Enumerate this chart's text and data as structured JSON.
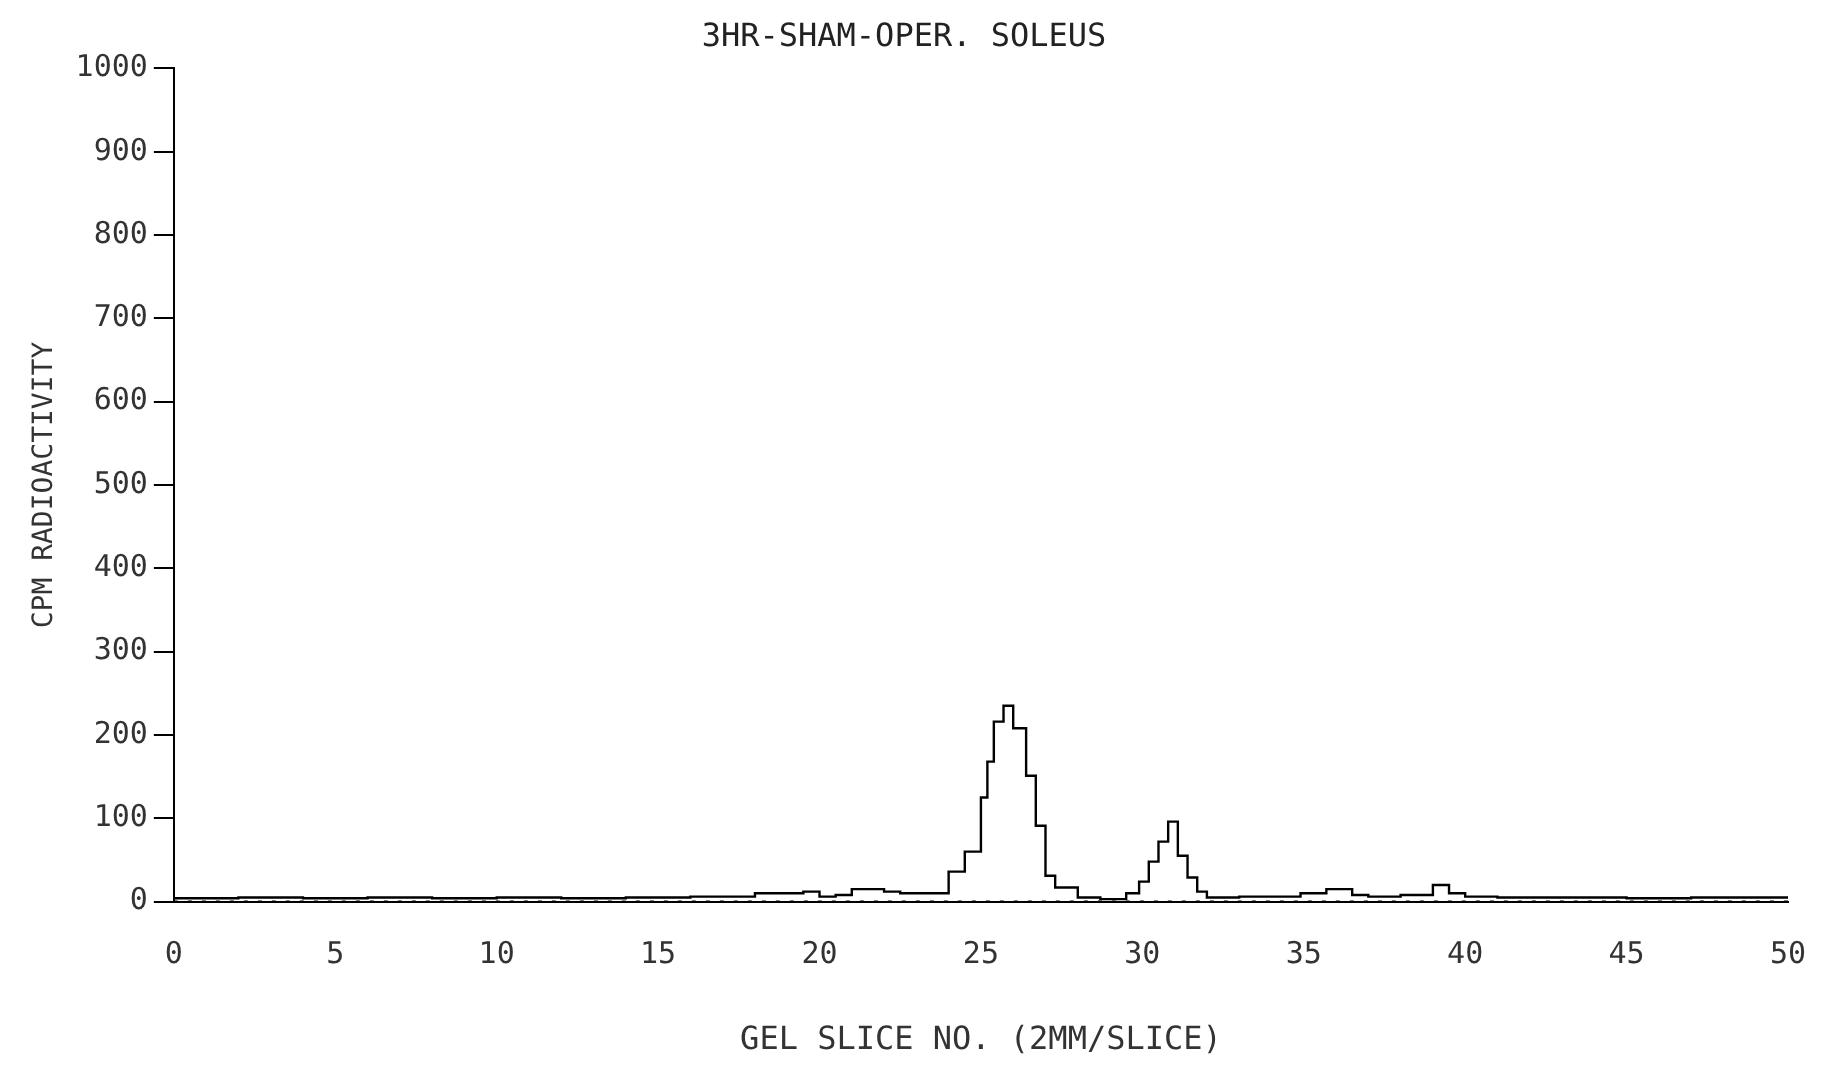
{
  "chart_data": {
    "type": "step",
    "title": "3HR-SHAM-OPER. SOLEUS",
    "xlabel": "GEL SLICE NO. (2MM/SLICE)",
    "ylabel": "CPM RADIOACTIVITY",
    "x": [
      0,
      2,
      4,
      6,
      8,
      10,
      12,
      14,
      16,
      18,
      19.5,
      20,
      20.5,
      21,
      22,
      22.5,
      24,
      24.5,
      25,
      25.2,
      25.4,
      25.7,
      26,
      26.4,
      26.7,
      27,
      27.3,
      28,
      28.7,
      29.5,
      29.9,
      30.2,
      30.5,
      30.8,
      31.1,
      31.4,
      31.7,
      32,
      33,
      34.9,
      35.7,
      36.5,
      37,
      38,
      39,
      39.5,
      40,
      41,
      43,
      45,
      47,
      49,
      50
    ],
    "series": [
      {
        "color": "#000000",
        "values": [
          5,
          4,
          5,
          4,
          5,
          4,
          5,
          4,
          5,
          6,
          10,
          12,
          6,
          8,
          15,
          12,
          10,
          36,
          60,
          125,
          168,
          216,
          235,
          208,
          151,
          91,
          31,
          17,
          5,
          3,
          10,
          24,
          48,
          72,
          96,
          55,
          29,
          12,
          5,
          6,
          10,
          15,
          8,
          6,
          8,
          20,
          10,
          6,
          5,
          5,
          4,
          5,
          5
        ]
      }
    ],
    "xlim": [
      0,
      50
    ],
    "ylim": [
      0,
      1000
    ],
    "xticks": [
      0,
      5,
      10,
      15,
      20,
      25,
      30,
      35,
      40,
      45,
      50
    ],
    "yticks": [
      0,
      100,
      200,
      300,
      400,
      500,
      600,
      700,
      800,
      900,
      1000
    ],
    "ref_lines": [
      {
        "axis": "y",
        "value": 0,
        "line_style": "dotted"
      }
    ],
    "grid": false,
    "legend": false,
    "marker": "none",
    "line_style": "solid"
  }
}
